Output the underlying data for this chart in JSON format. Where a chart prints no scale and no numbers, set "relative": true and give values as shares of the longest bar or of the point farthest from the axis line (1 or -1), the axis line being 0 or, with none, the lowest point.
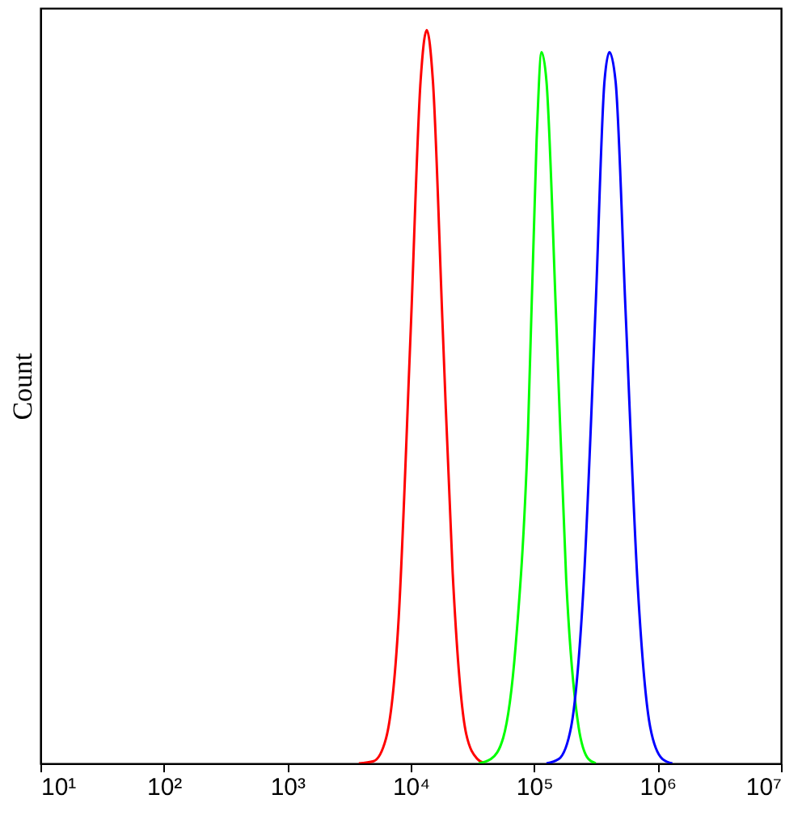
{
  "chart_data": {
    "type": "line",
    "ylabel": "Count",
    "relative": true,
    "log": "x",
    "grid": false,
    "xlim": [
      10,
      10000000
    ],
    "xticks": [
      {
        "value": 10,
        "label": "10¹"
      },
      {
        "value": 100,
        "label": "10²"
      },
      {
        "value": 1000,
        "label": "10³"
      },
      {
        "value": 10000,
        "label": "10⁴"
      },
      {
        "value": 100000,
        "label": "10⁵"
      },
      {
        "value": 1000000,
        "label": "10⁶"
      },
      {
        "value": 10000000,
        "label": "10⁷"
      }
    ],
    "series": [
      {
        "color": "#ff0000",
        "x": [
          3800,
          5010,
          6310,
          7940,
          10000,
          12020,
          13490,
          15140,
          18200,
          21880,
          28180,
          34670,
          39810
        ],
        "values": [
          0,
          0.003,
          0.034,
          0.19,
          0.59,
          0.93,
          1,
          0.93,
          0.59,
          0.26,
          0.04,
          0.006,
          0
        ]
      },
      {
        "color": "#00ff00",
        "x": [
          35500,
          44700,
          56200,
          70800,
          89100,
          104700,
          114800,
          125900,
          151400,
          182000,
          229100,
          275400,
          316200
        ],
        "values": [
          0,
          0.006,
          0.035,
          0.16,
          0.45,
          0.85,
          0.97,
          0.93,
          0.6,
          0.25,
          0.05,
          0.006,
          0
        ]
      },
      {
        "color": "#0000ff",
        "x": [
          125900,
          158500,
          199500,
          251200,
          316200,
          371500,
          407400,
          457100,
          549500,
          691800,
          871000,
          1096000,
          1318000
        ],
        "values": [
          0,
          0.006,
          0.05,
          0.24,
          0.63,
          0.93,
          0.97,
          0.93,
          0.62,
          0.24,
          0.05,
          0.006,
          0
        ]
      }
    ]
  }
}
